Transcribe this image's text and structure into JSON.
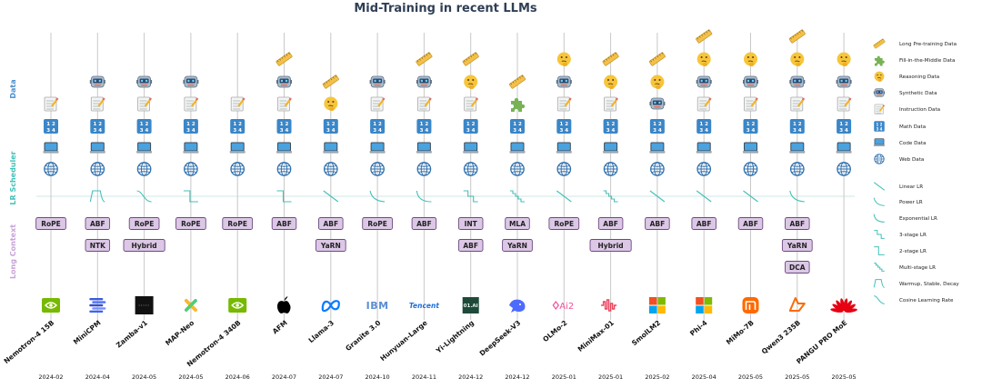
{
  "chart_data": {
    "type": "timeline-matrix",
    "title": "Mid-Training in recent LLMs",
    "row_labels": {
      "data": "Data",
      "lr": "LR Scheduler",
      "long": "Long Context"
    },
    "colors": {
      "data": "#4a90d0",
      "lr": "#43c0b8",
      "long": "#c8a2d8",
      "title": "#2f3f55",
      "badge_fill": "#dcc8e6",
      "badge_stroke": "#6b4a7d"
    },
    "data_legend": [
      {
        "key": "long_pretrain",
        "label": "Long Pre-training Data",
        "icon": "ruler-icon"
      },
      {
        "key": "fim",
        "label": "Fill-in-the-Middle Data",
        "icon": "puzzle-icon"
      },
      {
        "key": "reasoning",
        "label": "Reasoning Data",
        "icon": "thinking-face-icon"
      },
      {
        "key": "synthetic",
        "label": "Synthetic Data",
        "icon": "robot-icon"
      },
      {
        "key": "instruction",
        "label": "Instruction Data",
        "icon": "memo-icon"
      },
      {
        "key": "math",
        "label": "Math Data",
        "icon": "numbers-icon"
      },
      {
        "key": "code",
        "label": "Code Data",
        "icon": "laptop-icon"
      },
      {
        "key": "web",
        "label": "Web Data",
        "icon": "globe-icon"
      }
    ],
    "lr_legend": [
      {
        "key": "linear",
        "label": "Linear LR"
      },
      {
        "key": "power",
        "label": "Power LR"
      },
      {
        "key": "exp",
        "label": "Exponential LR"
      },
      {
        "key": "three",
        "label": "3-stage LR"
      },
      {
        "key": "two",
        "label": "2-stage LR"
      },
      {
        "key": "multi",
        "label": "Multi-stage LR"
      },
      {
        "key": "wsd",
        "label": "Warmup, Stable, Decay"
      },
      {
        "key": "cosine",
        "label": "Cosine Learning Rate"
      }
    ],
    "math_glyph": "1 2\n3 4",
    "models": [
      {
        "name": "Nemotron-4 15B",
        "date": "2024-02",
        "data": [
          "instruction",
          "math",
          "code",
          "web"
        ],
        "lr": "",
        "long": [
          "RoPE"
        ],
        "logo": "nvidia-logo"
      },
      {
        "name": "MiniCPM",
        "date": "2024-04",
        "data": [
          "synthetic",
          "instruction",
          "math",
          "code",
          "web"
        ],
        "lr": "wsd",
        "long": [
          "ABF",
          "NTK"
        ],
        "logo": "minicpm-logo"
      },
      {
        "name": "Zamba-v1",
        "date": "2024-05",
        "data": [
          "synthetic",
          "instruction",
          "math",
          "code",
          "web"
        ],
        "lr": "cosine",
        "long": [
          "RoPE",
          "Hybrid"
        ],
        "logo": "zamba-logo"
      },
      {
        "name": "MAP-Neo",
        "date": "2024-05",
        "data": [
          "synthetic",
          "instruction",
          "math",
          "code",
          "web"
        ],
        "lr": "two",
        "long": [
          "RoPE"
        ],
        "logo": "mapneo-logo"
      },
      {
        "name": "Nemotron-4 340B",
        "date": "2024-06",
        "data": [
          "instruction",
          "math",
          "code",
          "web"
        ],
        "lr": "",
        "long": [
          "RoPE"
        ],
        "logo": "nvidia-logo"
      },
      {
        "name": "AFM",
        "date": "2024-07",
        "data": [
          "long_pretrain",
          "synthetic",
          "instruction",
          "math",
          "code",
          "web"
        ],
        "lr": "two",
        "long": [
          "ABF"
        ],
        "logo": "apple-logo"
      },
      {
        "name": "Llama-3",
        "date": "2024-07",
        "data": [
          "long_pretrain",
          "reasoning",
          "math",
          "code",
          "web"
        ],
        "lr": "linear",
        "long": [
          "ABF",
          "YaRN"
        ],
        "logo": "meta-logo"
      },
      {
        "name": "Granite 3.0",
        "date": "2024-10",
        "data": [
          "synthetic",
          "instruction",
          "math",
          "code",
          "web"
        ],
        "lr": "power",
        "long": [
          "RoPE"
        ],
        "logo": "ibm-logo"
      },
      {
        "name": "Hunyuan-Large",
        "date": "2024-11",
        "data": [
          "long_pretrain",
          "synthetic",
          "instruction",
          "math",
          "code",
          "web"
        ],
        "lr": "exp",
        "long": [
          "ABF"
        ],
        "logo": "tencent-logo"
      },
      {
        "name": "Yi-Lightning",
        "date": "2024-12",
        "data": [
          "long_pretrain",
          "reasoning",
          "instruction",
          "math",
          "code",
          "web"
        ],
        "lr": "three",
        "long": [
          "INT",
          "ABF"
        ],
        "logo": "01ai-logo"
      },
      {
        "name": "DeepSeek-V3",
        "date": "2024-12",
        "data": [
          "long_pretrain",
          "fim",
          "math",
          "code",
          "web"
        ],
        "lr": "multi",
        "long": [
          "MLA",
          "YaRN"
        ],
        "logo": "deepseek-logo"
      },
      {
        "name": "OLMo-2",
        "date": "2025-01",
        "data": [
          "reasoning",
          "synthetic",
          "instruction",
          "math",
          "code",
          "web"
        ],
        "lr": "linear",
        "long": [
          "RoPE"
        ],
        "logo": "ai2-logo"
      },
      {
        "name": "MiniMax-01",
        "date": "2025-01",
        "data": [
          "long_pretrain",
          "reasoning",
          "instruction",
          "math",
          "code",
          "web"
        ],
        "lr": "multi",
        "long": [
          "ABF",
          "Hybrid"
        ],
        "logo": "minimax-logo"
      },
      {
        "name": "SmolLM2",
        "date": "2025-02",
        "data": [
          "long_pretrain",
          "reasoning",
          "synthetic",
          "math",
          "code",
          "web"
        ],
        "lr": "linear",
        "long": [
          "ABF"
        ],
        "logo": "microsoft-logo"
      },
      {
        "name": "Phi-4",
        "date": "2025-04",
        "data": [
          "long_pretrain",
          "reasoning",
          "synthetic",
          "instruction",
          "math",
          "code",
          "web"
        ],
        "lr": "linear",
        "long": [
          "ABF"
        ],
        "logo": "microsoft-logo"
      },
      {
        "name": "MiMo-7B",
        "date": "2025-05",
        "data": [
          "reasoning",
          "synthetic",
          "instruction",
          "math",
          "code",
          "web"
        ],
        "lr": "linear",
        "long": [
          "ABF"
        ],
        "logo": "xiaomi-logo"
      },
      {
        "name": "Qwen3 235B",
        "date": "2025-05",
        "data": [
          "long_pretrain",
          "reasoning",
          "synthetic",
          "instruction",
          "math",
          "code",
          "web"
        ],
        "lr": "power",
        "long": [
          "ABF",
          "YaRN",
          "DCA"
        ],
        "logo": "qwen-logo"
      },
      {
        "name": "PANGU PRO MoE",
        "date": "2025-05",
        "data": [
          "reasoning",
          "synthetic",
          "instruction",
          "math",
          "code",
          "web"
        ],
        "lr": "",
        "long": [],
        "logo": "huawei-logo"
      }
    ],
    "logo_text": {
      "ibm": "IBM",
      "tencent": "Tencent",
      "oneai": "01.AI",
      "ai2": "Ai2"
    }
  }
}
